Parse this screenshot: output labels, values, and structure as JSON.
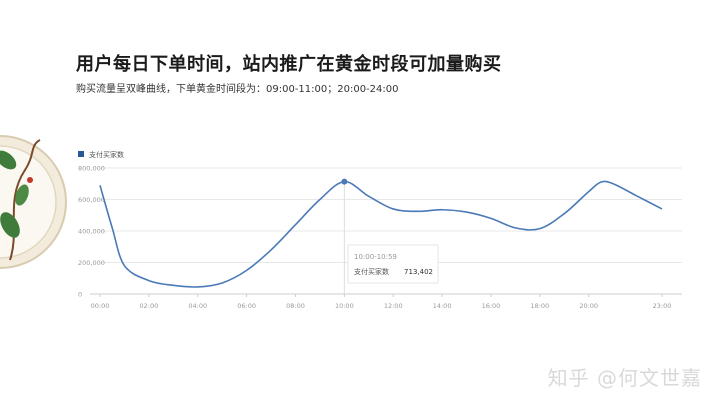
{
  "header": {
    "title": "用户每日下单时间，站内推广在黄金时段可加量购买",
    "subtitle": "购买流量呈双峰曲线，下单黄金时间段为：09:00-11:00；20:00-24:00"
  },
  "watermark": "知乎 @何文世嘉",
  "decoration": {
    "icon": "ornamental-plate-icon",
    "ring_color": "#e6dcc7",
    "leaf_color": "#3f7b3a"
  },
  "colors": {
    "line": "#4a7ab8",
    "legend": "#2b5797",
    "grid": "#e8e8e8",
    "axis_text": "#999999"
  },
  "chart_data": {
    "type": "line",
    "title": "",
    "xlabel": "",
    "ylabel": "",
    "legend": {
      "position": "top-left"
    },
    "ylim": [
      0,
      800000
    ],
    "yticks": [
      0,
      200000,
      400000,
      600000,
      800000
    ],
    "ytick_labels": [
      "0",
      "200,000",
      "400,000",
      "600,000",
      "800,000"
    ],
    "xlim": [
      0,
      23
    ],
    "xticks": [
      0,
      2,
      4,
      6,
      8,
      10,
      12,
      14,
      16,
      18,
      20,
      23
    ],
    "xtick_labels": [
      "00:00",
      "02:00",
      "04:00",
      "06:00",
      "08:00",
      "10:00",
      "12:00",
      "14:00",
      "16:00",
      "18:00",
      "20:00",
      "23:00"
    ],
    "grid": true,
    "series": [
      {
        "name": "支付买家数",
        "x": [
          0,
          0.5,
          1,
          2,
          3,
          4,
          5,
          6,
          7,
          8,
          9,
          10,
          11,
          12,
          13,
          14,
          15,
          16,
          17,
          18,
          19,
          20,
          20.5,
          21,
          22,
          23
        ],
        "values": [
          690000,
          420000,
          180000,
          85000,
          55000,
          45000,
          70000,
          150000,
          280000,
          440000,
          600000,
          713402,
          620000,
          540000,
          525000,
          535000,
          520000,
          480000,
          420000,
          415000,
          510000,
          650000,
          710000,
          700000,
          620000,
          540000
        ]
      }
    ],
    "tooltip": {
      "time": "10:00-10:59",
      "label": "支付买家数",
      "value": "713,402"
    }
  }
}
